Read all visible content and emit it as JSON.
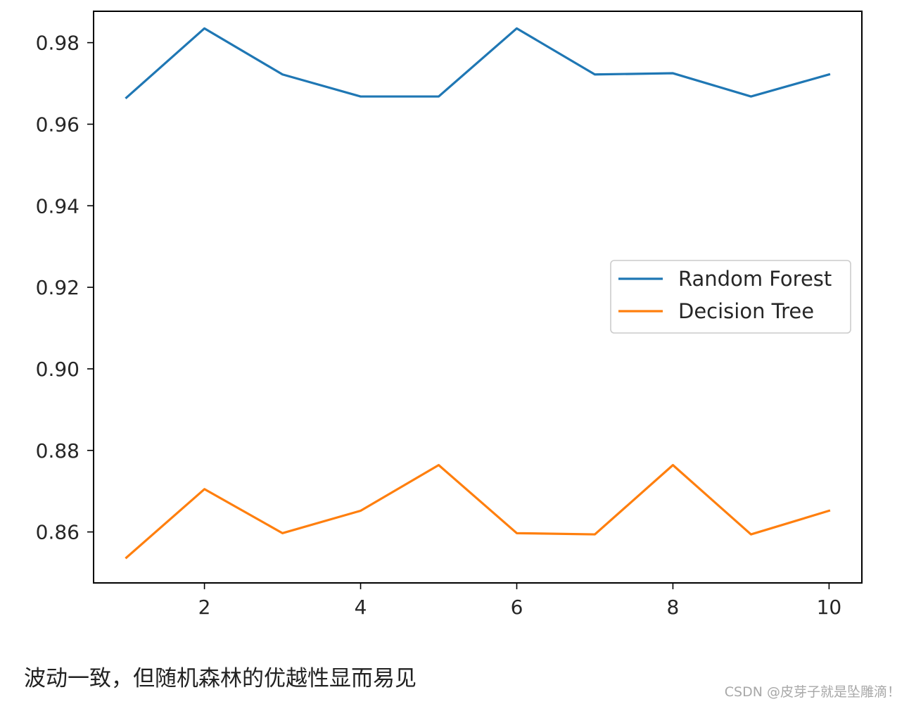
{
  "chart_data": {
    "type": "line",
    "title": "",
    "xlabel": "",
    "ylabel": "",
    "x": [
      1,
      2,
      3,
      4,
      5,
      6,
      7,
      8,
      9,
      10
    ],
    "xlim": [
      0.58,
      10.42
    ],
    "ylim": [
      0.8475,
      0.9877
    ],
    "xticks": [
      2,
      4,
      6,
      8,
      10
    ],
    "xtick_labels": [
      "2",
      "4",
      "6",
      "8",
      "10"
    ],
    "yticks": [
      0.86,
      0.88,
      0.9,
      0.92,
      0.94,
      0.96,
      0.98
    ],
    "ytick_labels": [
      "0.86",
      "0.88",
      "0.90",
      "0.92",
      "0.94",
      "0.96",
      "0.98"
    ],
    "grid": false,
    "legend_position": "center-right",
    "series": [
      {
        "name": "Random Forest",
        "color": "#1f77b4",
        "values": [
          0.9665,
          0.9835,
          0.9722,
          0.9668,
          0.9668,
          0.9835,
          0.9722,
          0.9725,
          0.9668,
          0.9722
        ]
      },
      {
        "name": "Decision Tree",
        "color": "#ff7f0e",
        "values": [
          0.8537,
          0.8705,
          0.8597,
          0.8652,
          0.8764,
          0.8597,
          0.8594,
          0.8764,
          0.8594,
          0.8652
        ]
      }
    ]
  },
  "caption": "波动一致，但随机森林的优越性显而易见",
  "watermark": "CSDN @皮芽子就是坠雕滴！"
}
